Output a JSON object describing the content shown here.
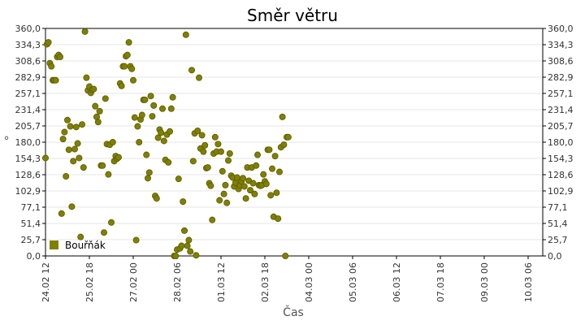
{
  "chart_data": {
    "type": "scatter",
    "title": "Směr větru",
    "xlabel": "Čas",
    "ylabel": "°",
    "ylim": [
      0,
      360
    ],
    "y_ticks": [
      "0,0",
      "25,7",
      "51,4",
      "77,1",
      "102,9",
      "128,6",
      "154,3",
      "180,0",
      "205,7",
      "231,4",
      "257,1",
      "282,9",
      "308,6",
      "334,3",
      "360,0"
    ],
    "x_ticks": [
      {
        "label": "24.02 12",
        "x": 0
      },
      {
        "label": "25.02 18",
        "x": 30
      },
      {
        "label": "27.02 00",
        "x": 60
      },
      {
        "label": "28.02 06",
        "x": 90
      },
      {
        "label": "01.03 12",
        "x": 120
      },
      {
        "label": "02.03 18",
        "x": 150
      },
      {
        "label": "04.03 00",
        "x": 180
      },
      {
        "label": "05.03 06",
        "x": 210
      },
      {
        "label": "06.03 12",
        "x": 240
      },
      {
        "label": "07.03 18",
        "x": 270
      },
      {
        "label": "09.03 00",
        "x": 300
      },
      {
        "label": "10.03 06",
        "x": 330
      }
    ],
    "x_unit": "hours since 24.02 12:00",
    "xlim": [
      0,
      340
    ],
    "grid": true,
    "legend_position": "bottom-left",
    "series": [
      {
        "name": "Bouřňák",
        "color": "#808000",
        "points": [
          [
            0,
            155
          ],
          [
            1,
            335
          ],
          [
            2,
            338
          ],
          [
            3,
            305
          ],
          [
            4,
            300
          ],
          [
            5,
            278
          ],
          [
            6,
            278
          ],
          [
            7,
            278
          ],
          [
            8,
            315
          ],
          [
            9,
            318
          ],
          [
            10,
            315
          ],
          [
            11,
            67
          ],
          [
            12,
            185
          ],
          [
            13,
            196
          ],
          [
            14,
            126
          ],
          [
            15,
            215
          ],
          [
            16,
            168
          ],
          [
            17,
            205
          ],
          [
            18,
            78
          ],
          [
            19,
            150
          ],
          [
            20,
            169
          ],
          [
            21,
            204
          ],
          [
            22,
            178
          ],
          [
            23,
            155
          ],
          [
            24,
            30
          ],
          [
            25,
            208
          ],
          [
            26,
            140
          ],
          [
            27,
            355
          ],
          [
            28,
            282
          ],
          [
            29,
            262
          ],
          [
            30,
            268
          ],
          [
            31,
            258
          ],
          [
            32,
            263
          ],
          [
            33,
            264
          ],
          [
            34,
            237
          ],
          [
            35,
            220
          ],
          [
            36,
            212
          ],
          [
            37,
            229
          ],
          [
            38,
            143
          ],
          [
            39,
            143
          ],
          [
            40,
            37
          ],
          [
            41,
            249
          ],
          [
            42,
            177
          ],
          [
            43,
            129
          ],
          [
            44,
            176
          ],
          [
            45,
            53
          ],
          [
            46,
            180
          ],
          [
            47,
            150
          ],
          [
            48,
            158
          ],
          [
            49,
            154
          ],
          [
            50,
            156
          ],
          [
            51,
            273
          ],
          [
            52,
            269
          ],
          [
            53,
            300
          ],
          [
            54,
            300
          ],
          [
            55,
            316
          ],
          [
            56,
            318
          ],
          [
            57,
            338
          ],
          [
            58,
            300
          ],
          [
            59,
            296
          ],
          [
            60,
            278
          ],
          [
            61,
            219
          ],
          [
            62,
            25
          ],
          [
            63,
            205
          ],
          [
            64,
            180
          ],
          [
            65,
            216
          ],
          [
            66,
            223
          ],
          [
            67,
            247
          ],
          [
            68,
            247
          ],
          [
            69,
            160
          ],
          [
            70,
            123
          ],
          [
            71,
            132
          ],
          [
            72,
            253
          ],
          [
            73,
            221
          ],
          [
            74,
            238
          ],
          [
            75,
            95
          ],
          [
            76,
            91
          ],
          [
            77,
            187
          ],
          [
            78,
            200
          ],
          [
            79,
            195
          ],
          [
            80,
            233
          ],
          [
            81,
            182
          ],
          [
            82,
            152
          ],
          [
            83,
            192
          ],
          [
            84,
            148
          ],
          [
            85,
            197
          ],
          [
            86,
            233
          ],
          [
            87,
            251
          ],
          [
            88,
            0
          ],
          [
            89,
            0
          ],
          [
            90,
            10
          ],
          [
            91,
            122
          ],
          [
            92,
            12
          ],
          [
            93,
            16
          ],
          [
            94,
            86
          ],
          [
            95,
            40
          ],
          [
            96,
            350
          ],
          [
            97,
            16
          ],
          [
            98,
            25
          ],
          [
            99,
            7
          ],
          [
            100,
            294
          ],
          [
            101,
            150
          ],
          [
            102,
            194
          ],
          [
            103,
            1
          ],
          [
            104,
            198
          ],
          [
            105,
            282
          ],
          [
            106,
            170
          ],
          [
            107,
            191
          ],
          [
            108,
            165
          ],
          [
            109,
            175
          ],
          [
            110,
            139
          ],
          [
            111,
            140
          ],
          [
            112,
            115
          ],
          [
            113,
            111
          ],
          [
            114,
            57
          ],
          [
            115,
            162
          ],
          [
            116,
            188
          ],
          [
            117,
            165
          ],
          [
            118,
            177
          ],
          [
            119,
            88
          ],
          [
            120,
            165
          ],
          [
            121,
            134
          ],
          [
            122,
            98
          ],
          [
            123,
            112
          ],
          [
            124,
            84
          ],
          [
            125,
            151
          ],
          [
            126,
            162
          ],
          [
            127,
            127
          ],
          [
            128,
            124
          ],
          [
            129,
            110
          ],
          [
            130,
            116
          ],
          [
            131,
            124
          ],
          [
            132,
            106
          ],
          [
            133,
            112
          ],
          [
            134,
            118
          ],
          [
            135,
            123
          ],
          [
            136,
            110
          ],
          [
            137,
            91
          ],
          [
            138,
            140
          ],
          [
            139,
            119
          ],
          [
            140,
            104
          ],
          [
            141,
            140
          ],
          [
            142,
            115
          ],
          [
            143,
            98
          ],
          [
            144,
            143
          ],
          [
            145,
            160
          ],
          [
            146,
            112
          ],
          [
            147,
            111
          ],
          [
            148,
            112
          ],
          [
            149,
            129
          ],
          [
            150,
            118
          ],
          [
            151,
            114
          ],
          [
            152,
            168
          ],
          [
            153,
            168
          ],
          [
            154,
            96
          ],
          [
            155,
            138
          ],
          [
            156,
            62
          ],
          [
            157,
            158
          ],
          [
            158,
            100
          ],
          [
            159,
            59
          ],
          [
            160,
            133
          ],
          [
            161,
            172
          ],
          [
            162,
            220
          ],
          [
            163,
            176
          ],
          [
            164,
            0
          ],
          [
            165,
            188
          ],
          [
            166,
            188
          ]
        ]
      }
    ]
  }
}
